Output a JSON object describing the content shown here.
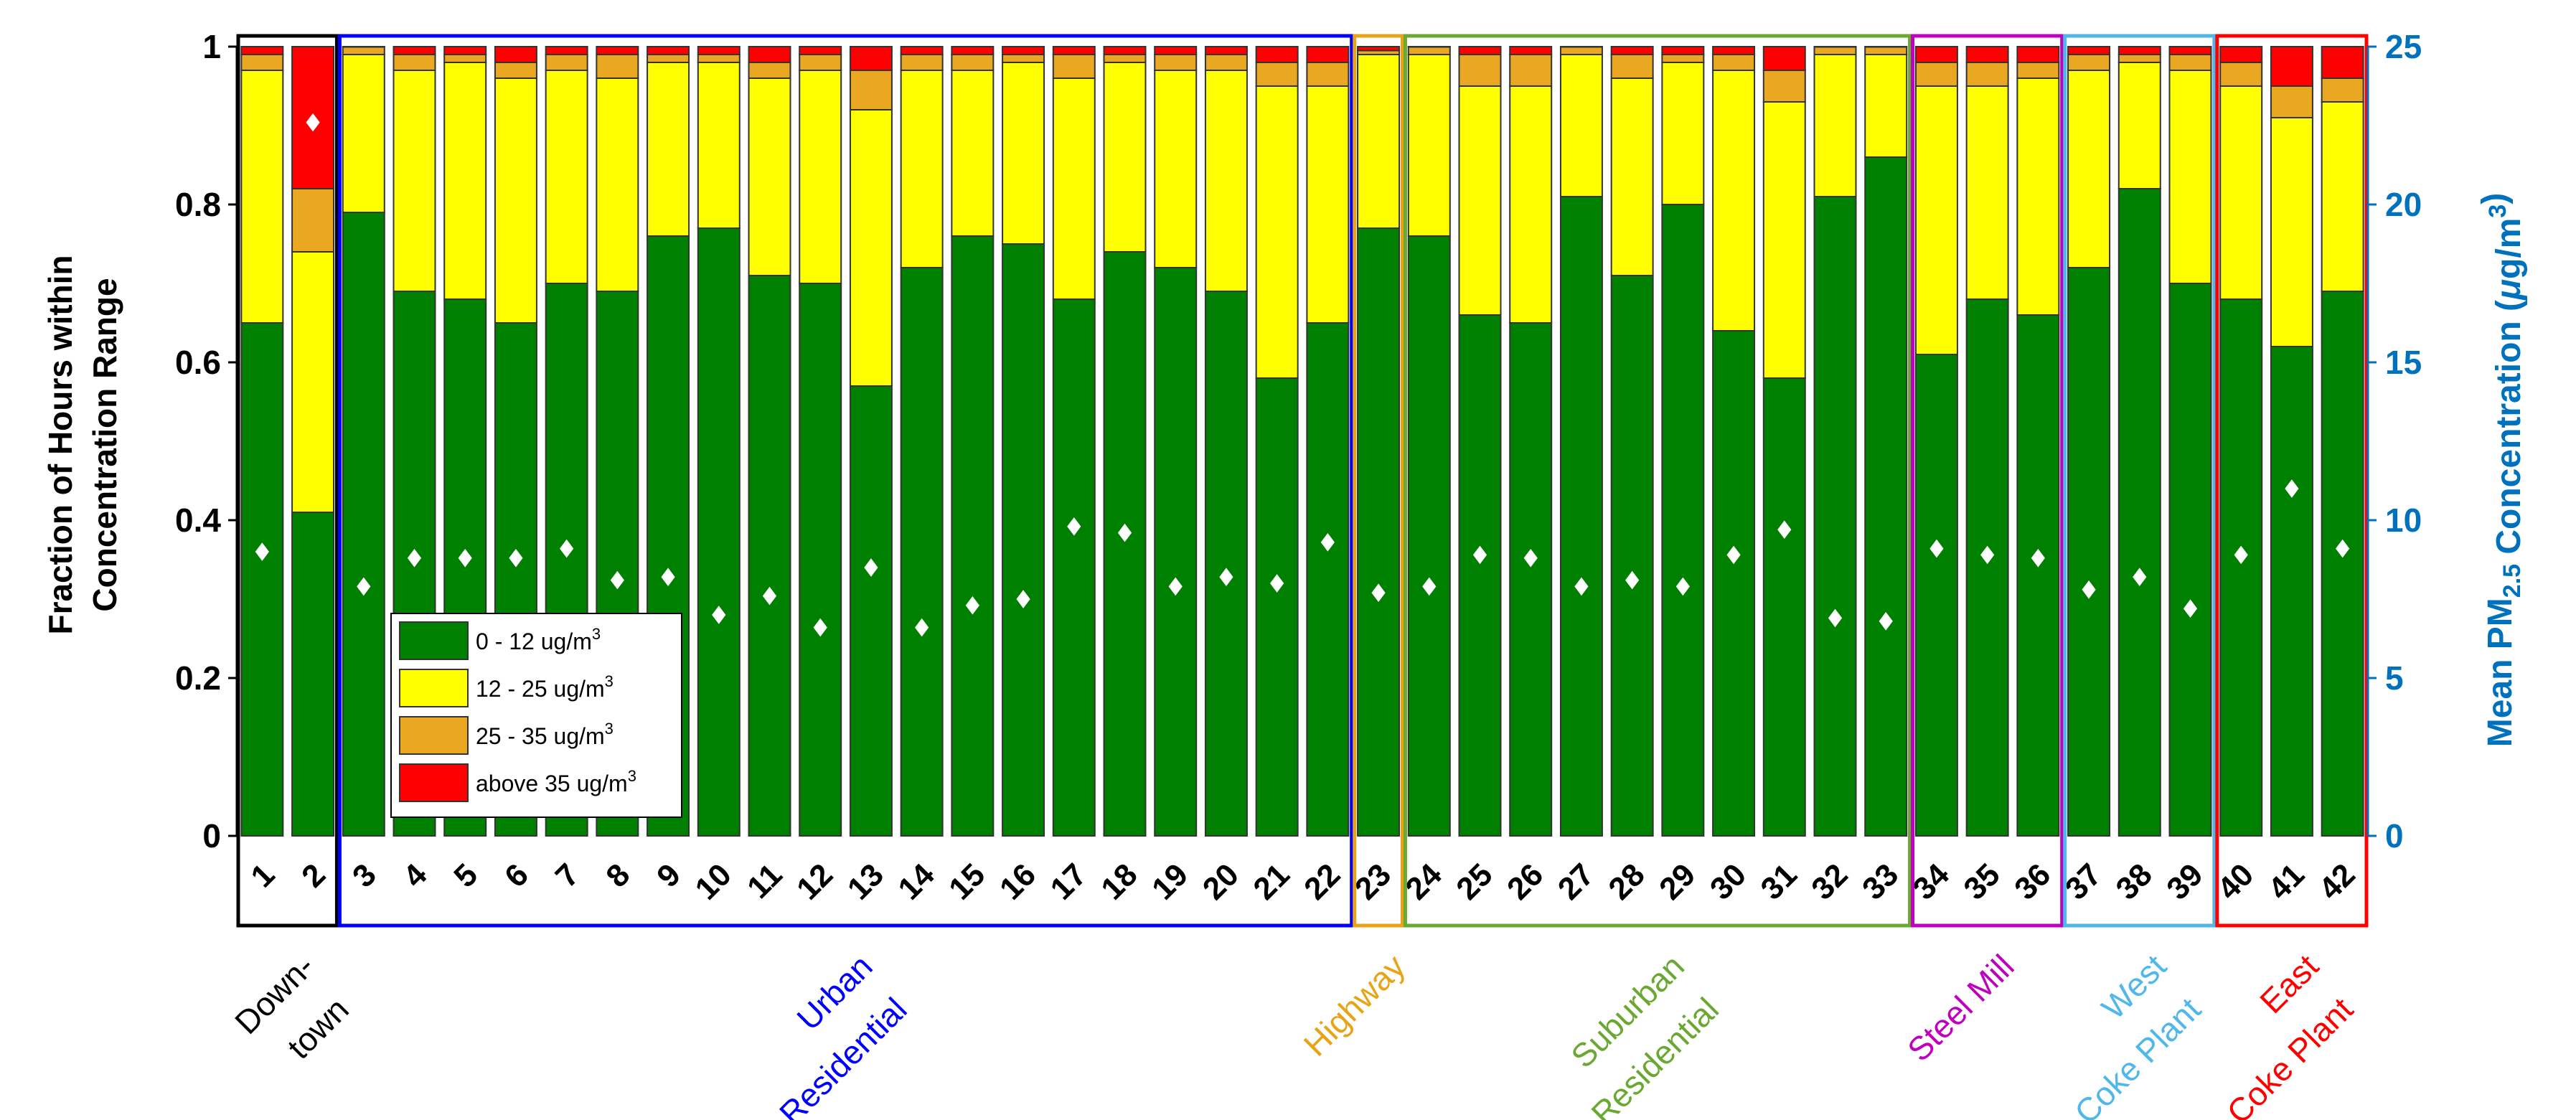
{
  "chart_data": {
    "type": "bar",
    "stacked": true,
    "normalized": true,
    "title": "",
    "ylabel_left": [
      "Fraction of Hours within",
      "Concentration Range"
    ],
    "ylabel_right": {
      "prefix": "Mean PM",
      "sub": "2.5",
      "suffix": " Concentration (",
      "mu": "μ",
      "unit": "g/m",
      "sup": "3",
      "close": ")"
    },
    "ylim_left": [
      0,
      1
    ],
    "ylim_right": [
      0,
      25
    ],
    "yticks_left": [
      "0",
      "0.2",
      "0.4",
      "0.6",
      "0.8",
      "1"
    ],
    "yticks_right": [
      "0",
      "5",
      "10",
      "15",
      "20",
      "25"
    ],
    "categories": [
      "1",
      "2",
      "3",
      "4",
      "5",
      "6",
      "7",
      "8",
      "9",
      "10",
      "11",
      "12",
      "13",
      "14",
      "15",
      "16",
      "17",
      "18",
      "19",
      "20",
      "21",
      "22",
      "23",
      "24",
      "25",
      "26",
      "27",
      "28",
      "29",
      "30",
      "31",
      "32",
      "33",
      "34",
      "35",
      "36",
      "37",
      "38",
      "39",
      "40",
      "41",
      "42"
    ],
    "series": [
      {
        "name": "0 - 12 ug/m",
        "sup": "3",
        "color": "#008000",
        "values": [
          0.65,
          0.41,
          0.79,
          0.69,
          0.68,
          0.65,
          0.7,
          0.69,
          0.76,
          0.77,
          0.71,
          0.7,
          0.57,
          0.72,
          0.76,
          0.75,
          0.68,
          0.74,
          0.72,
          0.69,
          0.58,
          0.65,
          0.77,
          0.76,
          0.66,
          0.65,
          0.81,
          0.71,
          0.8,
          0.64,
          0.58,
          0.81,
          0.86,
          0.61,
          0.68,
          0.66,
          0.72,
          0.82,
          0.7,
          0.68,
          0.62,
          0.69
        ]
      },
      {
        "name": "12 - 25 ug/m",
        "sup": "3",
        "color": "#ffff00",
        "values": [
          0.32,
          0.33,
          0.2,
          0.28,
          0.3,
          0.31,
          0.27,
          0.27,
          0.22,
          0.21,
          0.25,
          0.27,
          0.35,
          0.25,
          0.21,
          0.23,
          0.28,
          0.24,
          0.25,
          0.28,
          0.37,
          0.3,
          0.22,
          0.23,
          0.29,
          0.3,
          0.18,
          0.25,
          0.18,
          0.33,
          0.35,
          0.18,
          0.13,
          0.34,
          0.27,
          0.3,
          0.25,
          0.16,
          0.27,
          0.27,
          0.29,
          0.24
        ]
      },
      {
        "name": "25 - 35 ug/m",
        "sup": "3",
        "color": "#eaa822",
        "values": [
          0.02,
          0.08,
          0.01,
          0.02,
          0.01,
          0.02,
          0.02,
          0.03,
          0.01,
          0.01,
          0.02,
          0.02,
          0.05,
          0.02,
          0.02,
          0.01,
          0.03,
          0.01,
          0.02,
          0.02,
          0.03,
          0.03,
          0.005,
          0.01,
          0.04,
          0.04,
          0.01,
          0.03,
          0.01,
          0.02,
          0.04,
          0.01,
          0.01,
          0.03,
          0.03,
          0.02,
          0.02,
          0.01,
          0.02,
          0.03,
          0.04,
          0.03
        ]
      },
      {
        "name": "above 35 ug/m",
        "sup": "3",
        "color": "#ff0000",
        "values": [
          0.01,
          0.18,
          0.0,
          0.01,
          0.01,
          0.02,
          0.01,
          0.01,
          0.01,
          0.01,
          0.02,
          0.01,
          0.03,
          0.01,
          0.01,
          0.01,
          0.01,
          0.01,
          0.01,
          0.01,
          0.02,
          0.02,
          0.005,
          0.0,
          0.01,
          0.01,
          0.0,
          0.01,
          0.01,
          0.01,
          0.03,
          0.0,
          0.0,
          0.02,
          0.02,
          0.02,
          0.01,
          0.01,
          0.01,
          0.02,
          0.05,
          0.04
        ]
      }
    ],
    "mean_pm25": [
      9.0,
      22.6,
      7.9,
      8.8,
      8.8,
      8.8,
      9.1,
      8.1,
      8.2,
      7.0,
      7.6,
      6.6,
      8.5,
      6.6,
      7.3,
      7.5,
      9.8,
      9.6,
      7.9,
      8.2,
      8.0,
      9.3,
      7.7,
      7.9,
      8.9,
      8.8,
      7.9,
      8.1,
      7.9,
      8.9,
      9.7,
      6.9,
      6.8,
      9.1,
      8.9,
      8.8,
      7.8,
      8.2,
      7.2,
      8.9,
      11.0,
      9.1
    ],
    "groups": [
      {
        "lines": [
          "Down-",
          "town"
        ],
        "start": 1,
        "end": 2,
        "color": "#000000"
      },
      {
        "lines": [
          "Urban",
          "Residential"
        ],
        "start": 3,
        "end": 22,
        "color": "#0000ff"
      },
      {
        "lines": [
          "Highway"
        ],
        "start": 23,
        "end": 23,
        "color": "#e8a317"
      },
      {
        "lines": [
          "Suburban",
          "Residential"
        ],
        "start": 24,
        "end": 33,
        "color": "#6aa832"
      },
      {
        "lines": [
          "Steel Mill"
        ],
        "start": 34,
        "end": 36,
        "color": "#c000c0"
      },
      {
        "lines": [
          "West",
          "Coke Plant"
        ],
        "start": 37,
        "end": 39,
        "color": "#4fb7ea"
      },
      {
        "lines": [
          "East",
          "Coke Plant"
        ],
        "start": 40,
        "end": 42,
        "color": "#ff0000"
      }
    ],
    "right_axis_color": "#0072bd",
    "legend_position": "lower-left"
  }
}
